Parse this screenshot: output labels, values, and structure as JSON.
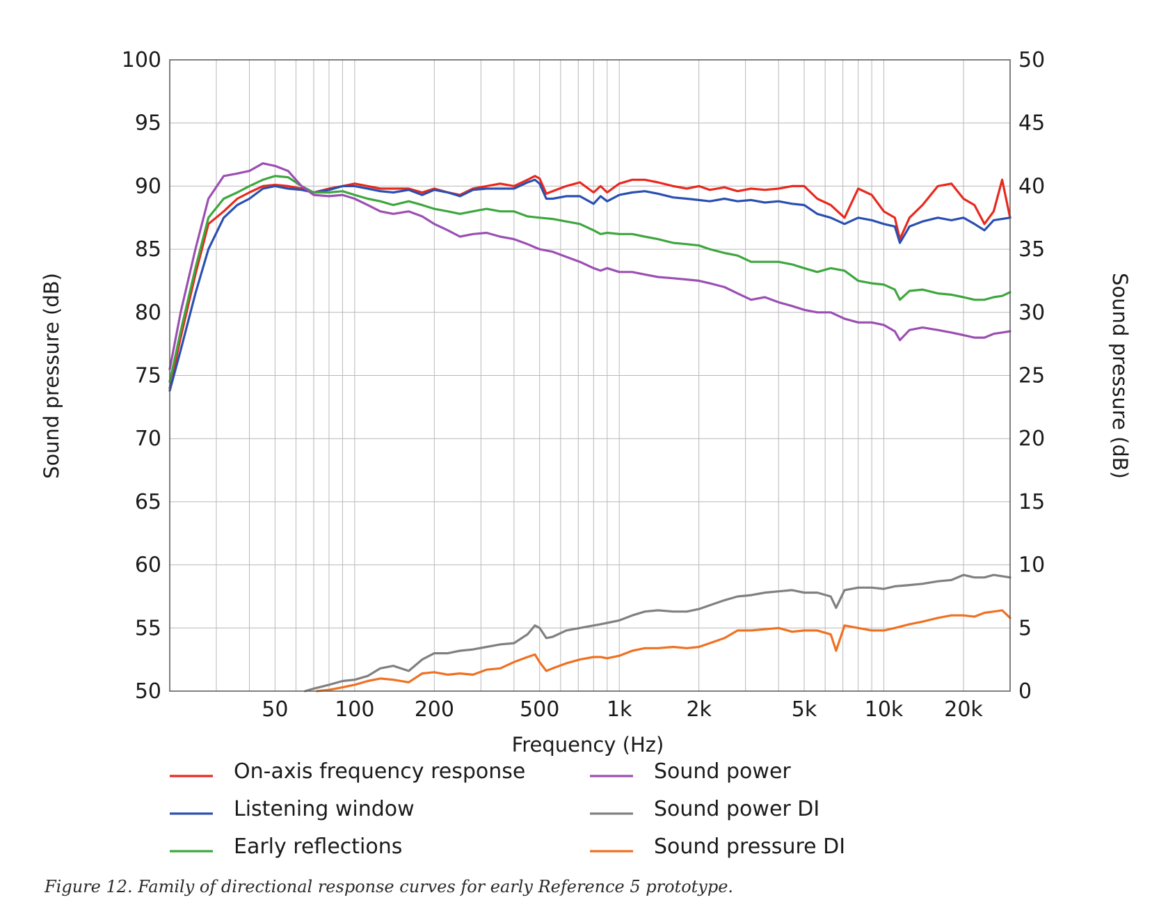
{
  "caption": "Figure 12.  Family of directional response curves for early Reference 5 prototype.",
  "chart_data": {
    "type": "line",
    "xlabel": "Frequency  (Hz)",
    "ylabel_left": "Sound pressure  (dB)",
    "ylabel_right": "Sound pressure  (dB)",
    "x_scale": "log",
    "xlim": [
      20,
      30000
    ],
    "ylim_left": [
      50,
      100
    ],
    "ylim_right": [
      0,
      50
    ],
    "grid": true,
    "legend_position": "bottom",
    "x_tick_labels": [
      {
        "value": 50,
        "label": "50"
      },
      {
        "value": 100,
        "label": "100"
      },
      {
        "value": 200,
        "label": "200"
      },
      {
        "value": 500,
        "label": "500"
      },
      {
        "value": 1000,
        "label": "1k"
      },
      {
        "value": 2000,
        "label": "2k"
      },
      {
        "value": 5000,
        "label": "5k"
      },
      {
        "value": 10000,
        "label": "10k"
      },
      {
        "value": 20000,
        "label": "20k"
      }
    ],
    "y_left_ticks": [
      50,
      55,
      60,
      65,
      70,
      75,
      80,
      85,
      90,
      95,
      100
    ],
    "y_right_ticks": [
      0,
      5,
      10,
      15,
      20,
      25,
      30,
      35,
      40,
      45,
      50
    ],
    "series": [
      {
        "name": "On-axis frequency response",
        "axis": "left",
        "color": "#e8281e",
        "x": [
          20,
          22,
          25,
          28,
          32,
          36,
          40,
          45,
          50,
          56,
          63,
          70,
          80,
          90,
          100,
          112,
          125,
          140,
          160,
          180,
          200,
          225,
          250,
          280,
          315,
          355,
          400,
          450,
          480,
          500,
          530,
          560,
          630,
          710,
          800,
          850,
          900,
          1000,
          1120,
          1250,
          1400,
          1600,
          1800,
          2000,
          2200,
          2500,
          2800,
          3150,
          3550,
          4000,
          4500,
          5000,
          5600,
          6300,
          7100,
          8000,
          9000,
          10000,
          11000,
          11500,
          12500,
          14000,
          16000,
          18000,
          20000,
          22000,
          24000,
          26000,
          28000,
          30000
        ],
        "y": [
          74,
          78,
          83,
          87,
          88,
          89,
          89.5,
          90,
          90.1,
          90,
          89.8,
          89.5,
          89.8,
          90,
          90.2,
          90,
          89.8,
          89.8,
          89.8,
          89.5,
          89.8,
          89.5,
          89.3,
          89.8,
          90,
          90.2,
          90,
          90.5,
          90.8,
          90.6,
          89.4,
          89.6,
          90,
          90.3,
          89.5,
          90,
          89.5,
          90.2,
          90.5,
          90.5,
          90.3,
          90,
          89.8,
          90,
          89.7,
          89.9,
          89.6,
          89.8,
          89.7,
          89.8,
          90,
          90,
          89,
          88.5,
          87.5,
          89.8,
          89.3,
          88,
          87.5,
          85.8,
          87.5,
          88.5,
          90,
          90.2,
          89,
          88.5,
          87,
          88,
          90.5,
          87.5
        ]
      },
      {
        "name": "Listening window",
        "axis": "left",
        "color": "#2a4fb0",
        "x": [
          20,
          22,
          25,
          28,
          32,
          36,
          40,
          45,
          50,
          56,
          63,
          70,
          80,
          90,
          100,
          112,
          125,
          140,
          160,
          180,
          200,
          225,
          250,
          280,
          315,
          355,
          400,
          450,
          480,
          500,
          530,
          560,
          630,
          710,
          800,
          850,
          900,
          1000,
          1120,
          1250,
          1400,
          1600,
          1800,
          2000,
          2200,
          2500,
          2800,
          3150,
          3550,
          4000,
          4500,
          5000,
          5600,
          6300,
          7100,
          8000,
          9000,
          10000,
          11000,
          11500,
          12500,
          14000,
          16000,
          18000,
          20000,
          22000,
          24000,
          26000,
          28000,
          30000
        ],
        "y": [
          73.8,
          77,
          81.5,
          85,
          87.5,
          88.5,
          89,
          89.8,
          90,
          89.8,
          89.7,
          89.5,
          89.7,
          90,
          90,
          89.8,
          89.6,
          89.5,
          89.7,
          89.3,
          89.7,
          89.5,
          89.2,
          89.7,
          89.8,
          89.8,
          89.8,
          90.3,
          90.5,
          90.2,
          89,
          89,
          89.2,
          89.2,
          88.6,
          89.2,
          88.8,
          89.3,
          89.5,
          89.6,
          89.4,
          89.1,
          89,
          88.9,
          88.8,
          89,
          88.8,
          88.9,
          88.7,
          88.8,
          88.6,
          88.5,
          87.8,
          87.5,
          87,
          87.5,
          87.3,
          87,
          86.8,
          85.5,
          86.8,
          87.2,
          87.5,
          87.3,
          87.5,
          87,
          86.5,
          87.3,
          87.4,
          87.5
        ]
      },
      {
        "name": "Early reflections",
        "axis": "left",
        "color": "#3ea63e",
        "x": [
          20,
          22,
          25,
          28,
          32,
          36,
          40,
          45,
          50,
          56,
          63,
          70,
          80,
          90,
          100,
          112,
          125,
          140,
          160,
          180,
          200,
          225,
          250,
          280,
          315,
          355,
          400,
          450,
          500,
          560,
          630,
          710,
          800,
          850,
          900,
          1000,
          1120,
          1250,
          1400,
          1600,
          1800,
          2000,
          2200,
          2500,
          2800,
          3150,
          3550,
          4000,
          4500,
          5000,
          5600,
          6300,
          7100,
          8000,
          9000,
          10000,
          11000,
          11500,
          12500,
          14000,
          16000,
          18000,
          20000,
          22000,
          24000,
          26000,
          28000,
          30000
        ],
        "y": [
          74.5,
          78.5,
          83.5,
          87.5,
          89,
          89.5,
          90,
          90.5,
          90.8,
          90.7,
          90,
          89.5,
          89.5,
          89.6,
          89.3,
          89,
          88.8,
          88.5,
          88.8,
          88.5,
          88.2,
          88,
          87.8,
          88,
          88.2,
          88,
          88,
          87.6,
          87.5,
          87.4,
          87.2,
          87,
          86.5,
          86.2,
          86.3,
          86.2,
          86.2,
          86,
          85.8,
          85.5,
          85.4,
          85.3,
          85,
          84.7,
          84.5,
          84,
          84,
          84,
          83.8,
          83.5,
          83.2,
          83.5,
          83.3,
          82.5,
          82.3,
          82.2,
          81.8,
          81,
          81.7,
          81.8,
          81.5,
          81.4,
          81.2,
          81,
          81,
          81.2,
          81.3,
          81.6
        ]
      },
      {
        "name": "Sound power",
        "axis": "left",
        "color": "#9b4fb3",
        "x": [
          20,
          22,
          25,
          28,
          32,
          36,
          40,
          45,
          50,
          56,
          63,
          70,
          80,
          90,
          100,
          112,
          125,
          140,
          160,
          180,
          200,
          225,
          250,
          280,
          315,
          355,
          400,
          450,
          500,
          560,
          630,
          710,
          800,
          850,
          900,
          1000,
          1120,
          1250,
          1400,
          1600,
          1800,
          2000,
          2200,
          2500,
          2800,
          3150,
          3550,
          4000,
          4500,
          5000,
          5600,
          6300,
          7100,
          8000,
          9000,
          10000,
          11000,
          11500,
          12500,
          14000,
          16000,
          18000,
          20000,
          22000,
          24000,
          26000,
          28000,
          30000
        ],
        "y": [
          75.5,
          80,
          85,
          89,
          90.8,
          91,
          91.2,
          91.8,
          91.6,
          91.2,
          90,
          89.3,
          89.2,
          89.3,
          89,
          88.5,
          88,
          87.8,
          88,
          87.6,
          87,
          86.5,
          86,
          86.2,
          86.3,
          86,
          85.8,
          85.4,
          85,
          84.8,
          84.4,
          84,
          83.5,
          83.3,
          83.5,
          83.2,
          83.2,
          83,
          82.8,
          82.7,
          82.6,
          82.5,
          82.3,
          82,
          81.5,
          81,
          81.2,
          80.8,
          80.5,
          80.2,
          80,
          80,
          79.5,
          79.2,
          79.2,
          79,
          78.5,
          77.8,
          78.6,
          78.8,
          78.6,
          78.4,
          78.2,
          78,
          78,
          78.3,
          78.4,
          78.5
        ]
      },
      {
        "name": "Sound power DI",
        "axis": "right",
        "color": "#808080",
        "x": [
          65,
          70,
          80,
          90,
          100,
          112,
          125,
          140,
          160,
          180,
          200,
          225,
          250,
          280,
          315,
          355,
          400,
          450,
          480,
          500,
          530,
          560,
          630,
          710,
          800,
          850,
          900,
          1000,
          1120,
          1250,
          1400,
          1600,
          1800,
          2000,
          2200,
          2500,
          2800,
          3150,
          3550,
          4000,
          4500,
          5000,
          5600,
          6300,
          6600,
          7100,
          8000,
          9000,
          10000,
          11000,
          12500,
          14000,
          16000,
          18000,
          20000,
          22000,
          24000,
          26000,
          28000,
          30000
        ],
        "y": [
          0,
          0.2,
          0.5,
          0.8,
          0.9,
          1.2,
          1.8,
          2,
          1.6,
          2.5,
          3,
          3,
          3.2,
          3.3,
          3.5,
          3.7,
          3.8,
          4.5,
          5.2,
          5,
          4.2,
          4.3,
          4.8,
          5,
          5.2,
          5.3,
          5.4,
          5.6,
          6,
          6.3,
          6.4,
          6.3,
          6.3,
          6.5,
          6.8,
          7.2,
          7.5,
          7.6,
          7.8,
          7.9,
          8,
          7.8,
          7.8,
          7.5,
          6.6,
          8,
          8.2,
          8.2,
          8.1,
          8.3,
          8.4,
          8.5,
          8.7,
          8.8,
          9.2,
          9,
          9,
          9.2,
          9.1,
          9
        ]
      },
      {
        "name": "Sound pressure DI",
        "axis": "right",
        "color": "#f07020",
        "x": [
          72,
          80,
          90,
          100,
          112,
          125,
          140,
          160,
          180,
          200,
          225,
          250,
          280,
          315,
          355,
          400,
          450,
          480,
          500,
          530,
          560,
          630,
          710,
          800,
          850,
          900,
          1000,
          1120,
          1250,
          1400,
          1600,
          1800,
          2000,
          2200,
          2500,
          2800,
          3150,
          3550,
          4000,
          4500,
          5000,
          5600,
          6300,
          6600,
          7100,
          8000,
          9000,
          10000,
          11000,
          12500,
          14000,
          16000,
          18000,
          20000,
          22000,
          24000,
          26000,
          28000,
          30000
        ],
        "y": [
          0,
          0.1,
          0.3,
          0.5,
          0.8,
          1,
          0.9,
          0.7,
          1.4,
          1.5,
          1.3,
          1.4,
          1.3,
          1.7,
          1.8,
          2.3,
          2.7,
          2.9,
          2.3,
          1.6,
          1.8,
          2.2,
          2.5,
          2.7,
          2.7,
          2.6,
          2.8,
          3.2,
          3.4,
          3.4,
          3.5,
          3.4,
          3.5,
          3.8,
          4.2,
          4.8,
          4.8,
          4.9,
          5,
          4.7,
          4.8,
          4.8,
          4.5,
          3.2,
          5.2,
          5,
          4.8,
          4.8,
          5,
          5.3,
          5.5,
          5.8,
          6,
          6,
          5.9,
          6.2,
          6.3,
          6.4,
          5.8
        ]
      }
    ]
  }
}
